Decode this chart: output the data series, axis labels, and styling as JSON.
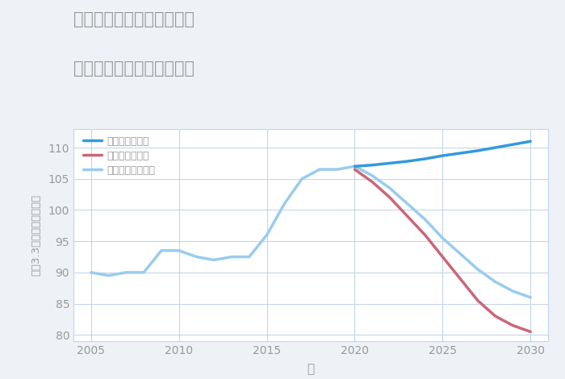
{
  "title_line1": "千葉県安房郡鋸南町江月の",
  "title_line2": "中古マンションの価格推移",
  "xlabel": "年",
  "ylabel": "平（3.3㎡）単価（万円）",
  "background_color": "#eef2f7",
  "plot_bg_color": "#ffffff",
  "grid_color": "#c5d5e8",
  "title_color": "#999999",
  "axis_color": "#999999",
  "xlim": [
    2004,
    2031
  ],
  "ylim": [
    79,
    113
  ],
  "xticks": [
    2005,
    2010,
    2015,
    2020,
    2025,
    2030
  ],
  "yticks": [
    80,
    85,
    90,
    95,
    100,
    105,
    110
  ],
  "good_scenario": {
    "label": "グッドシナリオ",
    "color": "#3399DD",
    "linewidth": 2.5,
    "x": [
      2020,
      2021,
      2022,
      2023,
      2024,
      2025,
      2026,
      2027,
      2028,
      2029,
      2030
    ],
    "y": [
      107.0,
      107.2,
      107.5,
      107.8,
      108.2,
      108.7,
      109.1,
      109.5,
      110.0,
      110.5,
      111.0
    ]
  },
  "bad_scenario": {
    "label": "バッドシナリオ",
    "color": "#cc6677",
    "linewidth": 2.5,
    "x": [
      2020,
      2021,
      2022,
      2023,
      2024,
      2025,
      2026,
      2027,
      2028,
      2029,
      2030
    ],
    "y": [
      106.5,
      104.5,
      102.0,
      99.0,
      96.0,
      92.5,
      89.0,
      85.5,
      83.0,
      81.5,
      80.5
    ]
  },
  "normal_scenario": {
    "label": "ノーマルシナリオ",
    "color": "#99CCEE",
    "linewidth": 2.5,
    "x": [
      2005,
      2006,
      2007,
      2008,
      2009,
      2010,
      2011,
      2012,
      2013,
      2014,
      2015,
      2016,
      2017,
      2018,
      2019,
      2020,
      2021,
      2022,
      2023,
      2024,
      2025,
      2026,
      2027,
      2028,
      2029,
      2030
    ],
    "y": [
      90.0,
      89.5,
      90.0,
      90.0,
      93.5,
      93.5,
      92.5,
      92.0,
      92.5,
      92.5,
      96.0,
      101.0,
      105.0,
      106.5,
      106.5,
      107.0,
      105.5,
      103.5,
      101.0,
      98.5,
      95.5,
      93.0,
      90.5,
      88.5,
      87.0,
      86.0
    ]
  }
}
